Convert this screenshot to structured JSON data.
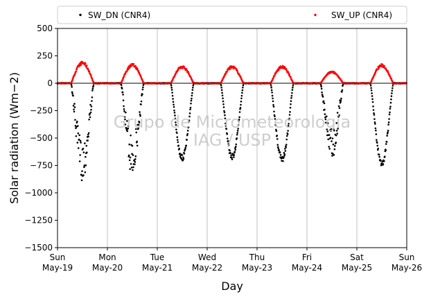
{
  "chart_data": {
    "type": "scatter",
    "xlabel": "Day",
    "ylabel": "Solar radiation (Wm−2)",
    "ylim": [
      -1500,
      500
    ],
    "yticks": [
      500,
      250,
      0,
      -250,
      -500,
      -750,
      -1000,
      -1250,
      -1500
    ],
    "xlim": [
      "2019-05-19",
      "2019-05-26"
    ],
    "xticks": [
      {
        "weekday": "Sun",
        "date": "May-19"
      },
      {
        "weekday": "Mon",
        "date": "May-20"
      },
      {
        "weekday": "Tue",
        "date": "May-21"
      },
      {
        "weekday": "Wed",
        "date": "May-22"
      },
      {
        "weekday": "Thu",
        "date": "May-23"
      },
      {
        "weekday": "Fri",
        "date": "May-24"
      },
      {
        "weekday": "Sat",
        "date": "May-25"
      },
      {
        "weekday": "Sun",
        "date": "May-26"
      }
    ],
    "grid": "vertical",
    "legend_position": "top",
    "series": [
      {
        "name": "SW_DN (CNR4)",
        "color": "#000000",
        "daily_peak": [
          -850,
          -800,
          -710,
          -700,
          -720,
          -660,
          -760
        ]
      },
      {
        "name": "SW_UP (CNR4)",
        "color": "#ff0000",
        "daily_peak": [
          200,
          180,
          160,
          160,
          160,
          110,
          175
        ]
      }
    ],
    "watermark": [
      "Grupo de Micrometeorologia",
      "IAG / USP"
    ]
  }
}
